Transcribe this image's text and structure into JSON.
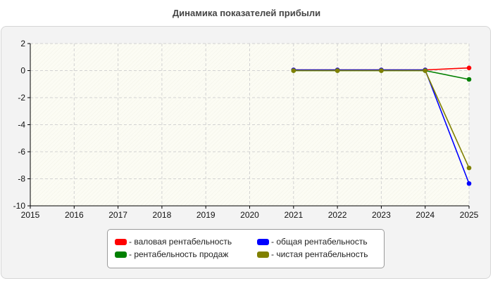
{
  "title": "Динамика показателей прибыли",
  "chart_data": {
    "type": "line",
    "title": "Динамика показателей прибыли",
    "xlabel": "",
    "ylabel": "",
    "x": [
      2015,
      2016,
      2017,
      2018,
      2019,
      2020,
      2021,
      2022,
      2023,
      2024,
      2025
    ],
    "xlim": [
      2015,
      2025
    ],
    "ylim": [
      -10,
      2
    ],
    "yticks": [
      2,
      0,
      -2,
      -4,
      -6,
      -8,
      -10
    ],
    "grid": true,
    "legend_position": "bottom",
    "series": [
      {
        "name": "- валовая рентабельность",
        "color": "#ff0000",
        "x": [
          2021,
          2022,
          2023,
          2024,
          2025
        ],
        "values": [
          0.05,
          0.05,
          0.05,
          0.05,
          0.2
        ]
      },
      {
        "name": "- общая рентабельность",
        "color": "#0000ff",
        "x": [
          2021,
          2022,
          2023,
          2024,
          2025
        ],
        "values": [
          0.05,
          0.05,
          0.05,
          0.05,
          -8.35
        ]
      },
      {
        "name": "- рентабельность продаж",
        "color": "#008000",
        "x": [
          2021,
          2022,
          2023,
          2024,
          2025
        ],
        "values": [
          0.0,
          0.0,
          0.0,
          0.0,
          -0.65
        ]
      },
      {
        "name": "- чистая рентабельность",
        "color": "#808000",
        "x": [
          2021,
          2022,
          2023,
          2024,
          2025
        ],
        "values": [
          0.0,
          0.0,
          0.0,
          0.0,
          -7.2
        ]
      }
    ]
  }
}
